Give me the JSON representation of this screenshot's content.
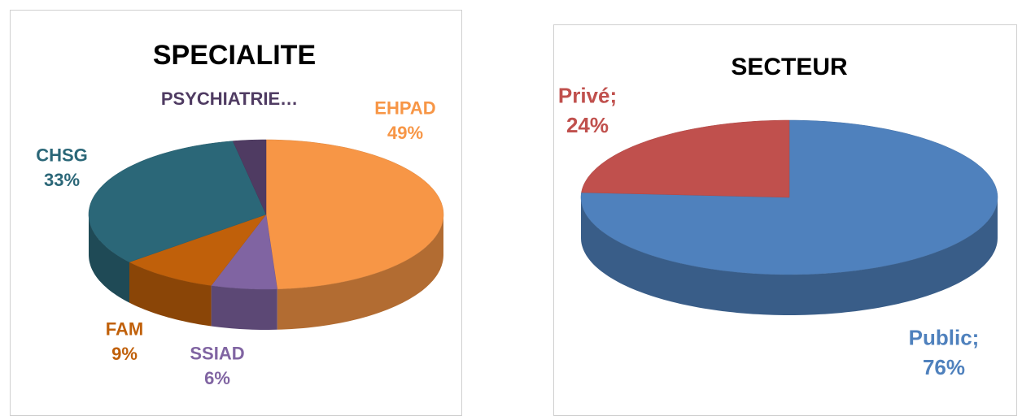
{
  "chart_data": [
    {
      "type": "pie",
      "title": "SPECIALITE",
      "categories": [
        "EHPAD",
        "SSIAD",
        "FAM",
        "CHSG",
        "PSYCHIATRIE…"
      ],
      "values": [
        49,
        6,
        9,
        33,
        3
      ],
      "value_labels": [
        "49%",
        "6%",
        "9%",
        "33%",
        null
      ],
      "colors": [
        "#f79646",
        "#8064a2",
        "#c0600a",
        "#2b6778",
        "#4f3b62"
      ]
    },
    {
      "type": "pie",
      "title": "SECTEUR",
      "categories": [
        "Public;",
        "Privé;"
      ],
      "values": [
        76,
        24
      ],
      "value_labels": [
        "76%",
        "24%"
      ],
      "colors": [
        "#4f81bd",
        "#c0504d"
      ]
    }
  ]
}
